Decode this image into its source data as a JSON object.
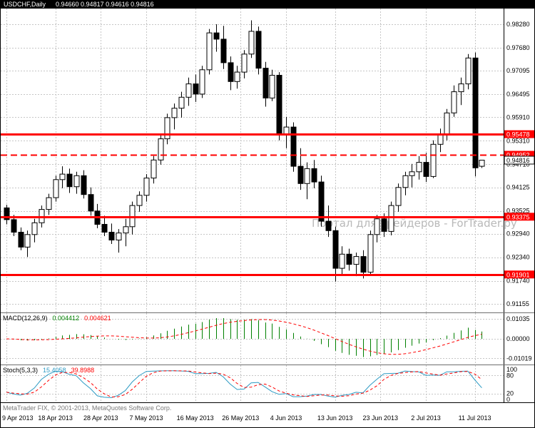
{
  "window": {
    "title_symbol": "USDCHF,Daily",
    "title_ohlc": "0.94660 0.94817 0.94616 0.94816"
  },
  "watermark": "Портал для трейдеров - ForTrader.ру",
  "copyright": "MetaTrader FIX, © 2001-2013, MetaQuotes Software Corp.",
  "colors": {
    "background": "#ffffff",
    "titlebar_bg": "#000000",
    "titlebar_text": "#ffffff",
    "grid": "#c6c6c6",
    "bull_body": "#ffffff",
    "bear_body": "#000000",
    "candle_outline": "#000000",
    "level_line": "#ff0000",
    "macd_histogram": "#008000",
    "signal_line": "#ff0000",
    "stoch_main": "#2e9bc4",
    "watermark_text": "#b9b9b9",
    "copyright_text": "#7a7a7a",
    "axis_text": "#000000"
  },
  "chart_data": [
    {
      "type": "candlestick",
      "symbol": "USDCHF",
      "timeframe": "Daily",
      "title": "USDCHF Daily candlestick chart",
      "y_axis_labels": [
        "0.98280",
        "0.97680",
        "0.97095",
        "0.96495",
        "0.95910",
        "0.95310",
        "0.94710",
        "0.94125",
        "0.93525",
        "0.92940",
        "0.92340",
        "0.91740",
        "0.91155"
      ],
      "levels": [
        {
          "price": "0.95478",
          "style": "solid"
        },
        {
          "price": "0.94952",
          "style": "dashed"
        },
        {
          "price": "0.93375",
          "style": "solid"
        },
        {
          "price": "0.91901",
          "style": "solid"
        }
      ],
      "current_price": "0.94816",
      "x_ticks": [
        {
          "label": "9 Apr 2013",
          "i": 0
        },
        {
          "label": "18 Apr 2013",
          "i": 7
        },
        {
          "label": "28 Apr 2013",
          "i": 13.5
        },
        {
          "label": "7 May 2013",
          "i": 20
        },
        {
          "label": "16 May 2013",
          "i": 27
        },
        {
          "label": "26 May 2013",
          "i": 33.5
        },
        {
          "label": "4 Jun 2013",
          "i": 40
        },
        {
          "label": "13 Jun 2013",
          "i": 47
        },
        {
          "label": "23 Jun 2013",
          "i": 53.5
        },
        {
          "label": "2 Jul 2013",
          "i": 60
        },
        {
          "label": "11 Jul 2013",
          "i": 67
        }
      ],
      "candles": [
        [
          0.936,
          0.9368,
          0.9318,
          0.933
        ],
        [
          0.933,
          0.9342,
          0.9288,
          0.9298
        ],
        [
          0.9298,
          0.931,
          0.9252,
          0.926
        ],
        [
          0.926,
          0.9302,
          0.9235,
          0.9292
        ],
        [
          0.9292,
          0.9332,
          0.9272,
          0.9322
        ],
        [
          0.9322,
          0.9366,
          0.931,
          0.9356
        ],
        [
          0.9356,
          0.9396,
          0.9342,
          0.9386
        ],
        [
          0.9386,
          0.9442,
          0.9376,
          0.9432
        ],
        [
          0.9432,
          0.9466,
          0.941,
          0.9446
        ],
        [
          0.9446,
          0.946,
          0.9398,
          0.9414
        ],
        [
          0.9414,
          0.9452,
          0.9396,
          0.9442
        ],
        [
          0.9442,
          0.9456,
          0.9384,
          0.9394
        ],
        [
          0.9394,
          0.9412,
          0.934,
          0.9352
        ],
        [
          0.9352,
          0.937,
          0.9308,
          0.9318
        ],
        [
          0.9318,
          0.934,
          0.9288,
          0.9298
        ],
        [
          0.9298,
          0.932,
          0.9268,
          0.9278
        ],
        [
          0.9278,
          0.9306,
          0.9246,
          0.9296
        ],
        [
          0.9296,
          0.9332,
          0.9262,
          0.9312
        ],
        [
          0.9312,
          0.9376,
          0.9292,
          0.9366
        ],
        [
          0.9366,
          0.9402,
          0.935,
          0.9392
        ],
        [
          0.9392,
          0.9446,
          0.9376,
          0.9436
        ],
        [
          0.9436,
          0.9492,
          0.9422,
          0.9482
        ],
        [
          0.9482,
          0.9546,
          0.947,
          0.9536
        ],
        [
          0.9536,
          0.96,
          0.9522,
          0.959
        ],
        [
          0.959,
          0.9626,
          0.956,
          0.9614
        ],
        [
          0.9614,
          0.9656,
          0.959,
          0.9642
        ],
        [
          0.9642,
          0.9692,
          0.962,
          0.9676
        ],
        [
          0.9676,
          0.97,
          0.963,
          0.965
        ],
        [
          0.965,
          0.9722,
          0.964,
          0.9712
        ],
        [
          0.9712,
          0.9816,
          0.97,
          0.9806
        ],
        [
          0.9806,
          0.9828,
          0.9758,
          0.979
        ],
        [
          0.979,
          0.9824,
          0.9714,
          0.973
        ],
        [
          0.973,
          0.9746,
          0.966,
          0.9682
        ],
        [
          0.9682,
          0.9722,
          0.9664,
          0.9706
        ],
        [
          0.9706,
          0.9762,
          0.969,
          0.9752
        ],
        [
          0.9752,
          0.9838,
          0.9742,
          0.981
        ],
        [
          0.981,
          0.9822,
          0.97,
          0.9716
        ],
        [
          0.9716,
          0.9732,
          0.9618,
          0.964
        ],
        [
          0.964,
          0.9712,
          0.9632,
          0.9698
        ],
        [
          0.9698,
          0.9706,
          0.9532,
          0.9548
        ],
        [
          0.9548,
          0.9592,
          0.9512,
          0.9566
        ],
        [
          0.9566,
          0.9578,
          0.9452,
          0.9466
        ],
        [
          0.9466,
          0.9512,
          0.9406,
          0.9422
        ],
        [
          0.9422,
          0.9476,
          0.9382,
          0.946
        ],
        [
          0.946,
          0.9482,
          0.941,
          0.9426
        ],
        [
          0.9426,
          0.9442,
          0.9312,
          0.9326
        ],
        [
          0.9326,
          0.9366,
          0.9286,
          0.9302
        ],
        [
          0.9302,
          0.9312,
          0.9172,
          0.9206
        ],
        [
          0.9206,
          0.9262,
          0.919,
          0.9242
        ],
        [
          0.9242,
          0.9256,
          0.92,
          0.9216
        ],
        [
          0.9216,
          0.9246,
          0.9186,
          0.9236
        ],
        [
          0.9236,
          0.9252,
          0.918,
          0.9196
        ],
        [
          0.9196,
          0.9302,
          0.919,
          0.9292
        ],
        [
          0.9292,
          0.9342,
          0.9272,
          0.9332
        ],
        [
          0.9332,
          0.9346,
          0.9286,
          0.93
        ],
        [
          0.93,
          0.9376,
          0.929,
          0.9366
        ],
        [
          0.9366,
          0.9422,
          0.935,
          0.9412
        ],
        [
          0.9412,
          0.9452,
          0.9392,
          0.9442
        ],
        [
          0.9442,
          0.9472,
          0.9412,
          0.9452
        ],
        [
          0.9452,
          0.9492,
          0.9432,
          0.9476
        ],
        [
          0.9476,
          0.95,
          0.9426,
          0.944
        ],
        [
          0.944,
          0.9532,
          0.9436,
          0.9522
        ],
        [
          0.9522,
          0.9562,
          0.9502,
          0.9546
        ],
        [
          0.9546,
          0.9612,
          0.9532,
          0.9602
        ],
        [
          0.9602,
          0.9672,
          0.9592,
          0.9656
        ],
        [
          0.9656,
          0.9692,
          0.9622,
          0.9676
        ],
        [
          0.9676,
          0.9752,
          0.9662,
          0.9742
        ],
        [
          0.9742,
          0.9756,
          0.944,
          0.9462
        ],
        [
          0.9466,
          0.94817,
          0.94616,
          0.94816
        ]
      ]
    },
    {
      "type": "macd",
      "label": "MACD(12,26,9)",
      "params": [
        12,
        26,
        9
      ],
      "value_main": "0.004412",
      "value_signal": "0.004621",
      "y_labels": [
        "0.01035",
        "0.00000",
        "-0.01019"
      ]
    },
    {
      "type": "stochastic",
      "label": "Stoch(5,3,3)",
      "params": [
        5,
        3,
        3
      ],
      "value_main": "15.4058",
      "value_signal": "39.8988",
      "y_labels": [
        "100",
        "80",
        "20",
        "0"
      ],
      "levels": [
        80,
        20
      ]
    }
  ]
}
